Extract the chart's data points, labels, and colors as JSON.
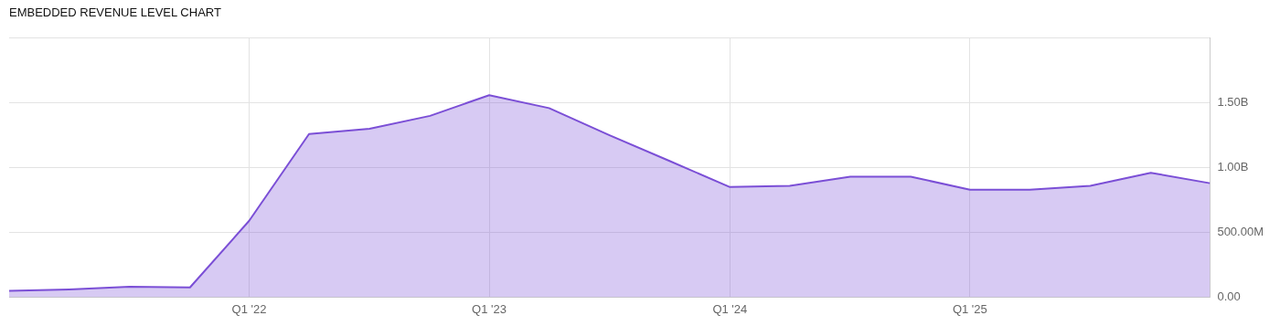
{
  "chart_data": {
    "type": "area",
    "title": "EMBEDDED REVENUE LEVEL CHART",
    "x": [
      "2021-03-31",
      "2021-06-30",
      "2021-09-30",
      "2021-12-31",
      "2022-03-31",
      "2022-06-30",
      "2022-09-30",
      "2022-12-31",
      "2023-03-31",
      "2023-06-30",
      "2023-09-30",
      "2023-12-31",
      "2024-03-31",
      "2024-06-30",
      "2024-09-30",
      "2024-12-31",
      "2025-03-31",
      "2025-06-30",
      "2025-09-30",
      "2025-12-31",
      "2026-03-31"
    ],
    "series": [
      {
        "color": "#7b4fd6",
        "values": [
          48000000,
          60000000,
          80000000,
          75000000,
          590000000,
          1260000000,
          1300000000,
          1400000000,
          1560000000,
          1460000000,
          1250000000,
          1050000000,
          850000000,
          860000000,
          930000000,
          930000000,
          830000000,
          830000000,
          860000000,
          960000000,
          880000000
        ]
      }
    ],
    "xlim": [
      "2021-03-31",
      "2026-03-31"
    ],
    "xticks": [
      {
        "value": "2022-03-31",
        "label": "Q1 '22"
      },
      {
        "value": "2023-03-31",
        "label": "Q1 '23"
      },
      {
        "value": "2024-03-31",
        "label": "Q1 '24"
      },
      {
        "value": "2025-03-31",
        "label": "Q1 '25"
      }
    ],
    "ylim": [
      0,
      2000000000
    ],
    "yticks": [
      {
        "value": 0,
        "label": "0.00"
      },
      {
        "value": 500000000,
        "label": "500.00M"
      },
      {
        "value": 1000000000,
        "label": "1.00B"
      },
      {
        "value": 1500000000,
        "label": "1.50B"
      },
      {
        "value": 2000000000,
        "label": null
      }
    ],
    "grid": true,
    "legend": false,
    "marker": "none"
  }
}
